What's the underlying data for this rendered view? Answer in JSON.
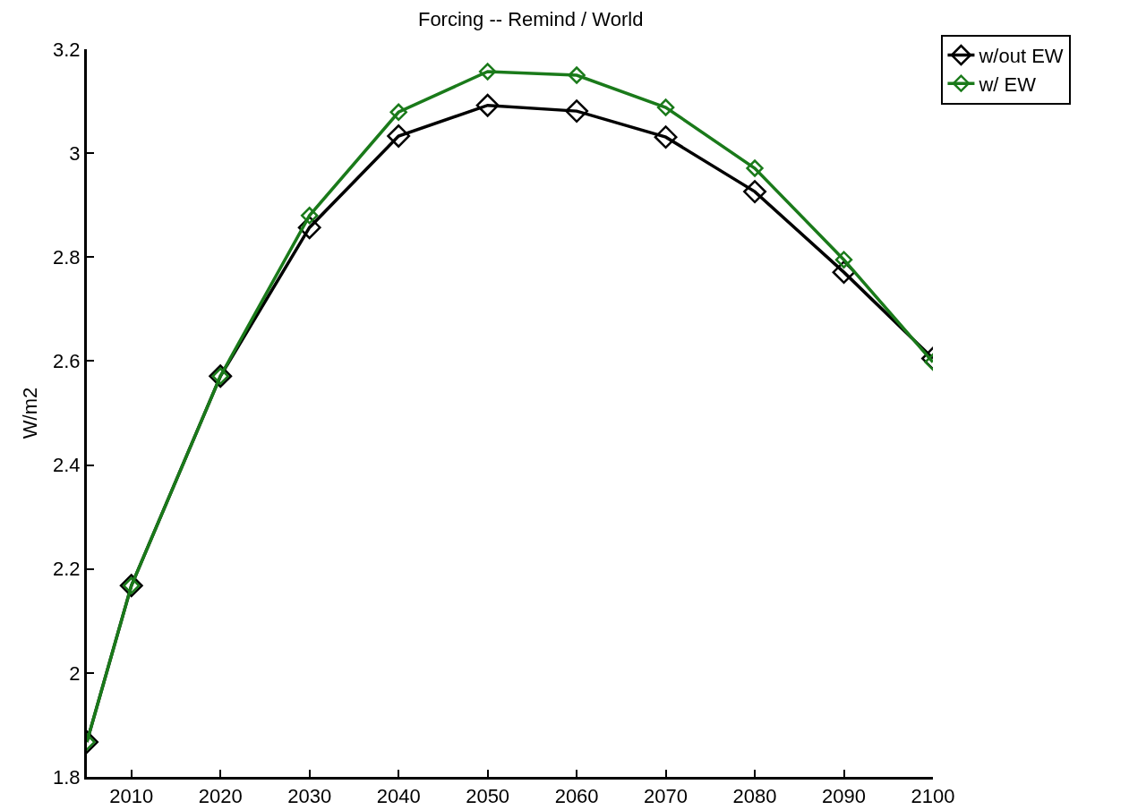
{
  "chart_data": {
    "type": "line",
    "title": "Forcing -- Remind / World",
    "ylabel": "W/m2",
    "x": [
      2005,
      2010,
      2020,
      2030,
      2040,
      2050,
      2060,
      2070,
      2080,
      2090,
      2100
    ],
    "series": [
      {
        "name": "w/out EW",
        "color": "#000000",
        "values": [
          1.867,
          2.168,
          2.571,
          2.857,
          3.033,
          3.092,
          3.081,
          3.031,
          2.926,
          2.771,
          2.605
        ]
      },
      {
        "name": "w/ EW",
        "color": "#1a7a1a",
        "values": [
          1.867,
          2.168,
          2.571,
          2.88,
          3.079,
          3.157,
          3.15,
          3.088,
          2.971,
          2.795,
          2.598
        ]
      }
    ],
    "xlim": [
      2005,
      2100
    ],
    "xticks": [
      2010,
      2020,
      2030,
      2040,
      2050,
      2060,
      2070,
      2080,
      2090,
      2100
    ],
    "ylim": [
      1.8,
      3.2
    ],
    "yticks": [
      1.8,
      2,
      2.2,
      2.4,
      2.6,
      2.8,
      3,
      3.2
    ],
    "grid": false,
    "legend": "top right",
    "marker": "diamond",
    "line_style": "solid"
  }
}
